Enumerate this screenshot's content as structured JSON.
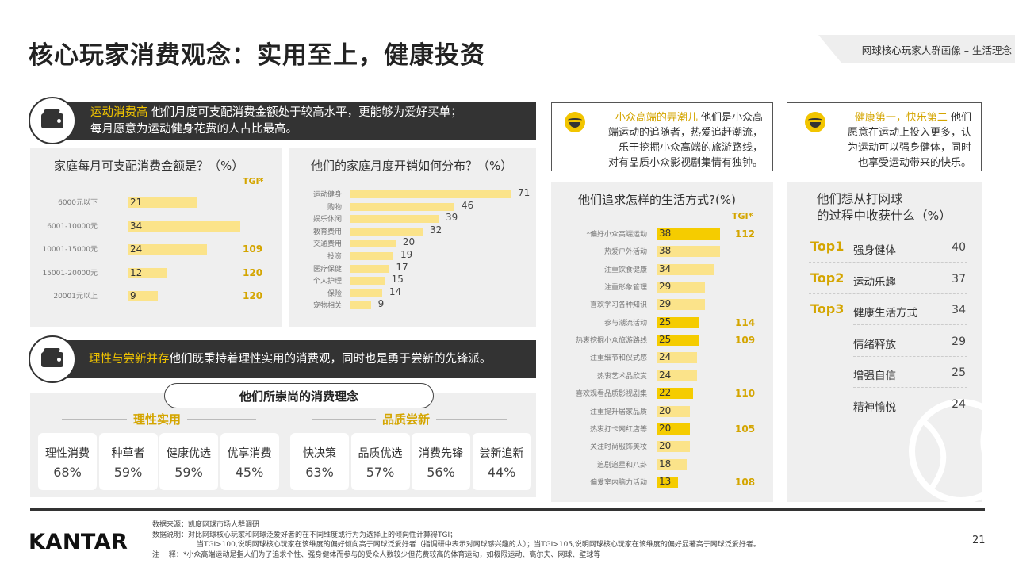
{
  "header": {
    "title": "核心玩家消费观念：实用至上，健康投资",
    "tag": "网球核心玩家人群画像 – 生活理念"
  },
  "banner1": {
    "highlight": "运动消费高",
    "text1": " 他们月度可支配消费金额处于较高水平，更能够为爱好买单；",
    "text2": "每月愿意为运动健身花费的人占比最高。"
  },
  "chart_income": {
    "title": "家庭每月可支配消费金额是？（%）",
    "tgi_header": "TGI*"
  },
  "chart_spend": {
    "title": "他们的家庭月度开销如何分布？（%）"
  },
  "quote1": {
    "highlight": "小众高端的弄潮儿",
    "lines": [
      "他们是小众高",
      "端运动的追随者，热爱追赶潮流，",
      "乐于挖掘小众高端的旅游路线，",
      "对有品质小众影视剧集情有独钟。"
    ]
  },
  "quote2": {
    "highlight": "健康第一，快乐第二",
    "lines": [
      "他们",
      "愿意在运动上投入更多，认",
      "为运动可以强身健体，同时",
      "也享受运动带来的快乐。"
    ]
  },
  "chart_lifestyle": {
    "title": "他们追求怎样的生活方式?(%)",
    "tgi_header": "TGI*"
  },
  "gains": {
    "title_line1": "他们想从打网球",
    "title_line2": "的过程中收获什么（%）",
    "rows": [
      {
        "rank": "Top1",
        "label": "强身健体",
        "value": "40"
      },
      {
        "rank": "Top2",
        "label": "运动乐趣",
        "value": "37"
      },
      {
        "rank": "Top3",
        "label": "健康生活方式",
        "value": "34"
      },
      {
        "rank": "",
        "label": "情绪释放",
        "value": "29"
      },
      {
        "rank": "",
        "label": "增强自信",
        "value": "25"
      },
      {
        "rank": "",
        "label": "精神愉悦",
        "value": "24"
      }
    ]
  },
  "banner2": {
    "highlight": "理性与尝新并存",
    "text": " 他们既秉持着理性实用的消费观，同时也是勇于尝新的先锋派。"
  },
  "ideals": {
    "title": "他们所崇尚的消费理念",
    "left_header": "理性实用",
    "right_header": "品质尝新",
    "left": [
      {
        "name": "理性消费",
        "pct": "68%"
      },
      {
        "name": "种草者",
        "pct": "59%"
      },
      {
        "name": "健康优选",
        "pct": "59%"
      },
      {
        "name": "优享消费",
        "pct": "45%"
      }
    ],
    "right": [
      {
        "name": "快决策",
        "pct": "63%"
      },
      {
        "name": "品质优选",
        "pct": "57%"
      },
      {
        "name": "消费先锋",
        "pct": "56%"
      },
      {
        "name": "尝新追新",
        "pct": "44%"
      }
    ]
  },
  "footer": {
    "logo": "KANTAR",
    "page": "21",
    "line1": "数据来源：凯度网球市场人群调研",
    "line2": "数据说明：对比网球核心玩家和网球泛爱好者的在不同维度或行为为选择上的倾向性计算得TGI；",
    "line3": "当TGI>100,说明网球核心玩家在该维度的偏好倾向高于网球泛爱好者（指调研中表示对网球感兴趣的人）；当TGI>105,说明网球核心玩家在该维度的偏好显著高于网球泛爱好者。",
    "line4": "注　 释：*小众高端运动是指人们为了追求个性、强身健体而参与的受众人数较少但花费较高的体育运动，如极限运动、高尔夫、网球、壁球等"
  },
  "colors": {
    "accent": "#f2c500",
    "bar_light": "#fbe38a",
    "tgi": "#d4a500",
    "dark": "#333333"
  },
  "chart_data": [
    {
      "type": "bar",
      "orientation": "horizontal",
      "title": "家庭每月可支配消费金额是？（%）",
      "categories": [
        "6000元以下",
        "6001-10000元",
        "10001-15000元",
        "15001-20000元",
        "20001元以上"
      ],
      "values": [
        21,
        34,
        24,
        12,
        9
      ],
      "tgi": [
        "",
        "",
        "109",
        "120",
        "120"
      ]
    },
    {
      "type": "bar",
      "orientation": "horizontal",
      "title": "他们的家庭月度开销如何分布？（%）",
      "categories": [
        "运动健身",
        "购物",
        "娱乐休闲",
        "教育费用",
        "交通费用",
        "投资",
        "医疗保健",
        "个人护理",
        "保险",
        "宠物相关"
      ],
      "values": [
        71,
        46,
        39,
        32,
        20,
        19,
        17,
        15,
        14,
        9
      ]
    },
    {
      "type": "bar",
      "orientation": "horizontal",
      "title": "他们追求怎样的生活方式?(%)",
      "categories": [
        "*偏好小众高端运动",
        "热爱户外活动",
        "注重饮食健康",
        "注重形象管理",
        "喜欢学习各种知识",
        "参与潮流活动",
        "热衷挖掘小众旅游路线",
        "注重细节和仪式感",
        "热衷艺术品欣赏",
        "喜欢观看品质影视剧集",
        "注重提升居家品质",
        "热衷打卡网红店等",
        "关注时尚服饰美妆",
        "追剧追星和八卦",
        "偏爱室内脑力活动"
      ],
      "values": [
        38,
        38,
        34,
        29,
        29,
        25,
        25,
        24,
        24,
        22,
        20,
        20,
        20,
        18,
        13
      ],
      "tgi": [
        "112",
        "",
        "",
        "",
        "",
        "114",
        "109",
        "",
        "",
        "110",
        "",
        "105",
        "",
        "",
        "108"
      ]
    }
  ]
}
